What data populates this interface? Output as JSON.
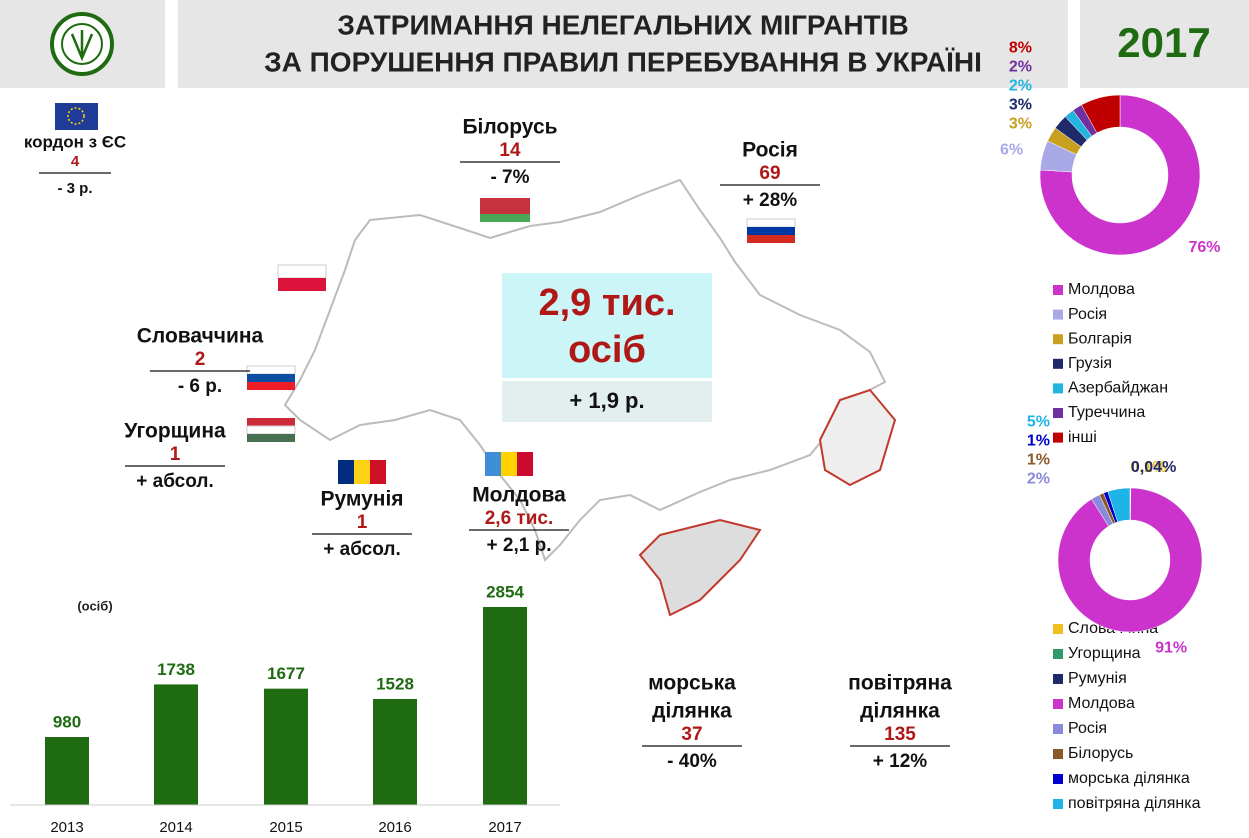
{
  "header": {
    "title_line1": "ЗАТРИМАННЯ НЕЛЕГАЛЬНИХ МІГРАНТІВ",
    "title_line2": "ЗА ПОРУШЕННЯ ПРАВИЛ ПЕРЕБУВАННЯ В УКРАЇНІ",
    "year": "2017"
  },
  "total": {
    "line1": "2,9 тис.",
    "line2": "осіб",
    "change": "+ 1,9 р."
  },
  "borders": [
    {
      "name_lines": [
        "кордон з ЄС"
      ],
      "count": 4,
      "change": "- 3 р."
    },
    {
      "name_lines": [
        "Білорусь"
      ],
      "count": 14,
      "change": "- 7%"
    },
    {
      "name_lines": [
        "Росія"
      ],
      "count": 69,
      "change": "+ 28%"
    },
    {
      "name_lines": [
        "Словаччина"
      ],
      "count": 2,
      "change": "- 6 р."
    },
    {
      "name_lines": [
        "Угорщина"
      ],
      "count": 1,
      "change": "+ абсол."
    },
    {
      "name_lines": [
        "Румунія"
      ],
      "count": 1,
      "change": "+ абсол."
    },
    {
      "name_lines": [
        "Молдова"
      ],
      "count": "2,6 тис.",
      "change": "+ 2,1 р."
    },
    {
      "name_lines": [
        "морська",
        "ділянка"
      ],
      "count": 37,
      "change": "- 40%"
    },
    {
      "name_lines": [
        "повітряна",
        "ділянка"
      ],
      "count": 135,
      "change": "+ 12%"
    }
  ],
  "chart_data": [
    {
      "type": "bar",
      "title": "(осіб)",
      "categories": [
        "2013",
        "2014",
        "2015",
        "2016",
        "2017"
      ],
      "values": [
        980,
        1738,
        1677,
        1528,
        2854
      ],
      "color": "#1e6b12"
    },
    {
      "type": "pie",
      "categories": [
        "Молдова",
        "Росія",
        "Болгарія",
        "Грузія",
        "Азербайджан",
        "Туреччина",
        "інші"
      ],
      "values": [
        76,
        6,
        3,
        3,
        2,
        2,
        8
      ],
      "value_labels": [
        "76%",
        "6%",
        "3%",
        "3%",
        "2%",
        "2%",
        "8%"
      ],
      "colors": [
        "#cc33cc",
        "#a9a9e8",
        "#c8a020",
        "#1f2a6b",
        "#22b5e0",
        "#7030a0",
        "#c00000"
      ]
    },
    {
      "type": "pie",
      "categories": [
        "Словаччина",
        "Угорщина",
        "Румунія",
        "Молдова",
        "Росія",
        "Білорусь",
        "морська ділянка",
        "повітряна ділянка"
      ],
      "values": [
        0.1,
        0.04,
        0.04,
        91,
        2,
        1,
        1,
        5
      ],
      "value_labels": [
        "0,1%",
        null,
        "0,04%",
        "91%",
        "2%",
        "1%",
        "1%",
        "5%"
      ],
      "colors": [
        "#f0c020",
        "#2e9a6a",
        "#1f2a6b",
        "#cc33cc",
        "#8a8adb",
        "#8b5a2b",
        "#0000cc",
        "#1fb4e8"
      ]
    }
  ]
}
